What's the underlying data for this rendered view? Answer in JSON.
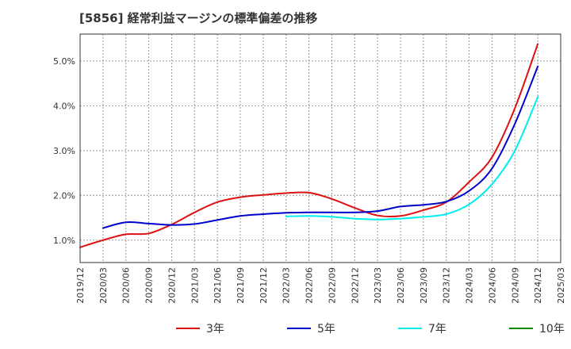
{
  "chart_data": {
    "type": "line",
    "title": "[5856]  経常利益マージンの標準偏差の推移",
    "xlabel": "",
    "ylabel": "",
    "x_ticks": [
      "2019/12",
      "2020/03",
      "2020/06",
      "2020/09",
      "2020/12",
      "2021/03",
      "2021/06",
      "2021/09",
      "2021/12",
      "2022/03",
      "2022/06",
      "2022/09",
      "2022/12",
      "2023/03",
      "2023/06",
      "2023/09",
      "2023/12",
      "2024/03",
      "2024/06",
      "2024/09",
      "2024/12",
      "2025/03"
    ],
    "y_ticks": [
      "1.0%",
      "2.0%",
      "3.0%",
      "4.0%",
      "5.0%"
    ],
    "y_tick_values": [
      1.0,
      2.0,
      3.0,
      4.0,
      5.0
    ],
    "ylim": [
      0.5,
      5.6
    ],
    "xlim": [
      "2019/12",
      "2025/03"
    ],
    "grid": true,
    "legend_position": "bottom",
    "series": [
      {
        "name": "3年",
        "color": "#dd1111",
        "x": [
          "2019/12",
          "2020/03",
          "2020/06",
          "2020/09",
          "2020/12",
          "2021/03",
          "2021/06",
          "2021/09",
          "2021/12",
          "2022/03",
          "2022/06",
          "2022/09",
          "2022/12",
          "2023/03",
          "2023/06",
          "2023/09",
          "2023/12",
          "2024/03",
          "2024/06",
          "2024/09",
          "2024/12"
        ],
        "values": [
          0.84,
          1.0,
          1.13,
          1.15,
          1.35,
          1.62,
          1.85,
          1.96,
          2.01,
          2.05,
          2.06,
          1.92,
          1.72,
          1.55,
          1.54,
          1.67,
          1.85,
          2.3,
          2.85,
          3.95,
          5.38
        ]
      },
      {
        "name": "5年",
        "color": "#0000cc",
        "x": [
          "2020/03",
          "2020/06",
          "2020/09",
          "2020/12",
          "2021/03",
          "2021/06",
          "2021/09",
          "2021/12",
          "2022/03",
          "2022/06",
          "2022/09",
          "2022/12",
          "2023/03",
          "2023/06",
          "2023/09",
          "2023/12",
          "2024/03",
          "2024/06",
          "2024/09",
          "2024/12"
        ],
        "values": [
          1.27,
          1.4,
          1.37,
          1.34,
          1.36,
          1.45,
          1.54,
          1.58,
          1.61,
          1.62,
          1.62,
          1.62,
          1.65,
          1.75,
          1.79,
          1.86,
          2.1,
          2.6,
          3.6,
          4.88
        ]
      },
      {
        "name": "7年",
        "color": "#00eeee",
        "x": [
          "2022/03",
          "2022/06",
          "2022/09",
          "2022/12",
          "2023/03",
          "2023/06",
          "2023/09",
          "2023/12",
          "2024/03",
          "2024/06",
          "2024/09",
          "2024/12"
        ],
        "values": [
          1.53,
          1.54,
          1.52,
          1.48,
          1.46,
          1.48,
          1.52,
          1.58,
          1.8,
          2.25,
          3.0,
          4.2
        ]
      },
      {
        "name": "10年",
        "color": "#008800",
        "x": [],
        "values": []
      }
    ]
  }
}
